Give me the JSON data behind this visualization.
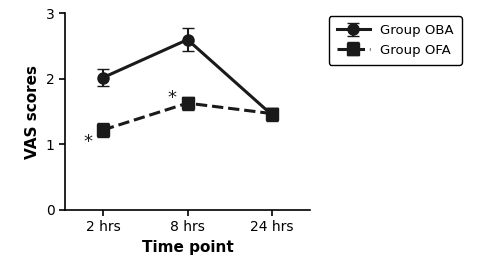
{
  "x_labels": [
    "2 hrs",
    "8 hrs",
    "24 hrs"
  ],
  "x_positions": [
    0,
    1,
    2
  ],
  "oba_means": [
    2.02,
    2.6,
    1.45
  ],
  "oba_sems": [
    0.13,
    0.18,
    0.1
  ],
  "ofa_means": [
    1.22,
    1.63,
    1.47
  ],
  "ofa_sems": [
    0.1,
    0.1,
    0.08
  ],
  "oba_label": "Group OBA",
  "ofa_label": "Group OFA",
  "xlabel": "Time point",
  "ylabel": "VAS scores",
  "ylim": [
    0,
    3
  ],
  "yticks": [
    0,
    1,
    2,
    3
  ],
  "line_color": "#1a1a1a",
  "marker_oba": "o",
  "marker_ofa": "s",
  "asterisk_fontsize": 13,
  "legend_fontsize": 9.5,
  "axis_fontsize": 11,
  "tick_fontsize": 10,
  "linewidth": 2.2,
  "markersize": 8,
  "capsize": 4,
  "elinewidth": 1.5
}
